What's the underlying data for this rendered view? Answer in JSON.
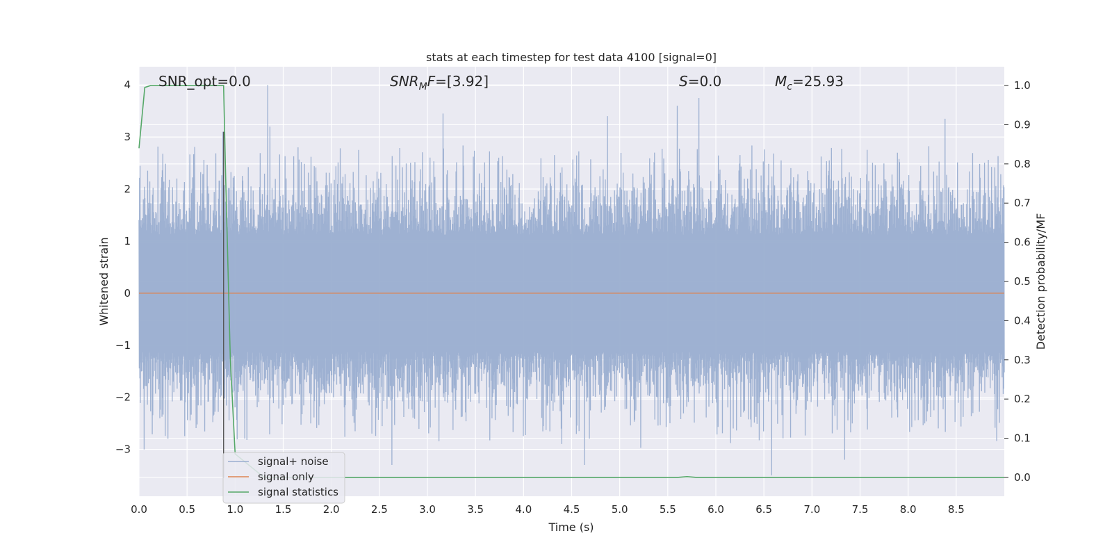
{
  "chart_data": {
    "type": "line",
    "title": "stats at each timestep for test data 4100 [signal=0]",
    "xlabel": "Time (s)",
    "ylabel_left": "Whitened strain",
    "ylabel_right": "Detection probability/MF",
    "xlim": [
      0.0,
      9.0
    ],
    "ylim_left": [
      -3.9,
      4.35
    ],
    "ylim_right": [
      -0.048,
      1.048
    ],
    "xticks": [
      "0.0",
      "0.5",
      "1.0",
      "1.5",
      "2.0",
      "2.5",
      "3.0",
      "3.5",
      "4.0",
      "4.5",
      "5.0",
      "5.5",
      "6.0",
      "6.5",
      "7.0",
      "7.5",
      "8.0",
      "8.5"
    ],
    "yticks_left": [
      "−3",
      "−2",
      "−1",
      "0",
      "1",
      "2",
      "3",
      "4"
    ],
    "yticks_right": [
      "0.0",
      "0.1",
      "0.2",
      "0.3",
      "0.4",
      "0.5",
      "0.6",
      "0.7",
      "0.8",
      "0.9",
      "1.0"
    ],
    "grid": true,
    "legend_position": "lower-left",
    "colors": {
      "background": "#eaeaf2",
      "grid": "#ffffff",
      "noise": "#9aaed0",
      "signal_only": "#dd8452",
      "statistics": "#55a868",
      "marker_line": "#555555"
    },
    "annotations": [
      {
        "parts": [
          {
            "text": "SNR_opt=0.0",
            "style": "normal"
          }
        ]
      },
      {
        "parts": [
          {
            "text": "SNR",
            "style": "italic"
          },
          {
            "text": "M",
            "style": "italic-sub"
          },
          {
            "text": "F",
            "style": "italic"
          },
          {
            "text": "=[3.92]",
            "style": "normal"
          }
        ]
      },
      {
        "parts": [
          {
            "text": "S",
            "style": "italic"
          },
          {
            "text": "=0.0",
            "style": "normal"
          }
        ]
      },
      {
        "parts": [
          {
            "text": "M",
            "style": "italic"
          },
          {
            "text": "c",
            "style": "italic-sub"
          },
          {
            "text": "=25.93",
            "style": "normal"
          }
        ]
      }
    ],
    "series": [
      {
        "name": "signal+ noise",
        "axis": "left",
        "kind": "noise",
        "t_start": 0.0,
        "t_end": 9.0,
        "typical_amplitude": 1.5,
        "peaks": [
          {
            "x": 0.87,
            "y": 3.1
          },
          {
            "x": 1.34,
            "y": 4.0
          },
          {
            "x": 1.36,
            "y": 3.2
          },
          {
            "x": 3.16,
            "y": 3.45
          },
          {
            "x": 4.87,
            "y": 3.4
          },
          {
            "x": 5.6,
            "y": 3.6
          },
          {
            "x": 5.82,
            "y": 3.75
          },
          {
            "x": 8.38,
            "y": 3.35
          },
          {
            "x": 0.05,
            "y": -3.0
          },
          {
            "x": 2.63,
            "y": -3.3
          },
          {
            "x": 4.63,
            "y": -3.3
          },
          {
            "x": 6.58,
            "y": -3.5
          },
          {
            "x": 7.34,
            "y": -3.2
          }
        ]
      },
      {
        "name": "signal only",
        "axis": "left",
        "kind": "constant",
        "x": [
          0.0,
          9.0
        ],
        "y": [
          0.0,
          0.0
        ]
      },
      {
        "name": "signal statistics",
        "axis": "right",
        "kind": "line",
        "x": [
          0.0,
          0.06,
          0.12,
          0.5,
          0.88,
          0.9,
          0.95,
          1.0,
          1.3,
          5.6,
          5.7,
          5.8,
          9.0
        ],
        "y": [
          0.84,
          0.995,
          1.0,
          1.0,
          1.0,
          0.78,
          0.3,
          0.06,
          0.0,
          0.0,
          0.002,
          0.0,
          0.0
        ]
      }
    ],
    "vertical_marker": {
      "x": 0.88,
      "y_from": -3.55,
      "y_to": 3.1
    }
  }
}
